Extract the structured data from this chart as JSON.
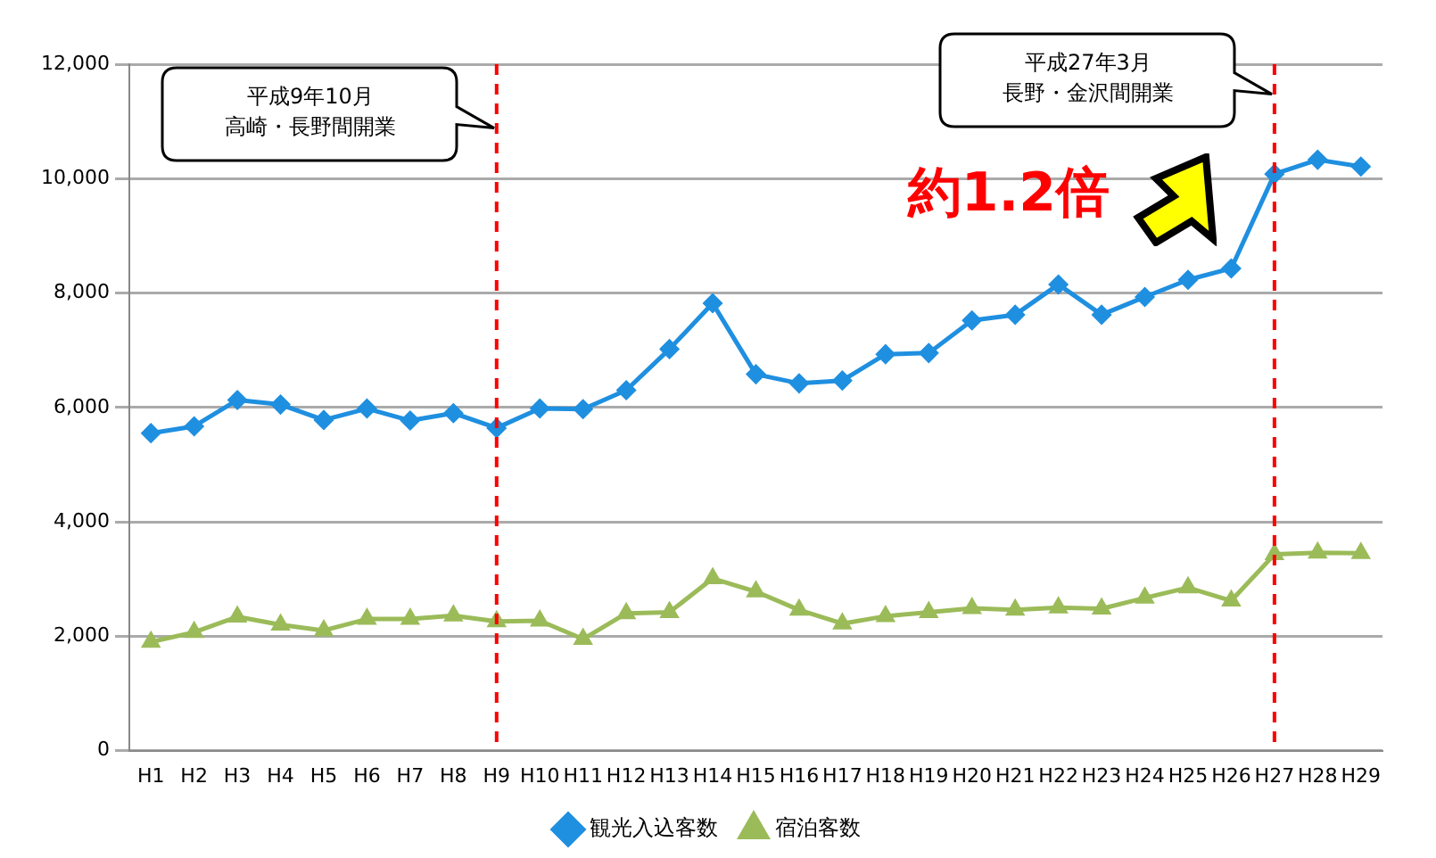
{
  "chart_data": {
    "type": "line",
    "categories": [
      "H1",
      "H2",
      "H3",
      "H4",
      "H5",
      "H6",
      "H7",
      "H8",
      "H9",
      "H10",
      "H11",
      "H12",
      "H13",
      "H14",
      "H15",
      "H16",
      "H17",
      "H18",
      "H19",
      "H20",
      "H21",
      "H22",
      "H23",
      "H24",
      "H25",
      "H26",
      "H27",
      "H28",
      "H29"
    ],
    "ylim": [
      0,
      12000
    ],
    "yticks": [
      0,
      {
        "value": 2000,
        "label": "2,000"
      },
      {
        "value": 4000,
        "label": "4,000"
      },
      {
        "value": 6000,
        "label": "6,000"
      },
      {
        "value": 8000,
        "label": "8,000"
      },
      {
        "value": 10000,
        "label": "10,000"
      },
      {
        "value": 12000,
        "label": "12,000"
      }
    ],
    "grid": "y",
    "legend": "bottom",
    "line_style": "solid",
    "series": [
      {
        "name": "観光入込客数",
        "color": "#1f8fe0",
        "marker": "diamond",
        "values": [
          5550,
          5670,
          6130,
          6050,
          5780,
          5980,
          5770,
          5900,
          5640,
          5980,
          5970,
          6300,
          7020,
          7820,
          6580,
          6420,
          6470,
          6930,
          6950,
          7520,
          7620,
          8150,
          7620,
          7930,
          8230,
          8430,
          10080,
          10330,
          10210
        ]
      },
      {
        "name": "宿泊客数",
        "color": "#9bbb59",
        "marker": "triangle",
        "values": [
          1900,
          2070,
          2340,
          2200,
          2100,
          2300,
          2300,
          2360,
          2260,
          2270,
          1950,
          2400,
          2420,
          3010,
          2780,
          2460,
          2220,
          2350,
          2420,
          2490,
          2460,
          2500,
          2480,
          2670,
          2850,
          2620,
          3430,
          3460,
          3450
        ]
      }
    ],
    "ref_lines": [
      {
        "axis": "x",
        "value": "H9",
        "color": "#ff0000",
        "line_style": "dashed"
      },
      {
        "axis": "x",
        "value": "H27",
        "color": "#ff0000",
        "line_style": "dashed"
      }
    ],
    "annotations": [
      "平成9年10月",
      "高崎・長野間開業",
      "平成27年3月",
      "長野・金沢間開業",
      "約1.2倍"
    ]
  }
}
